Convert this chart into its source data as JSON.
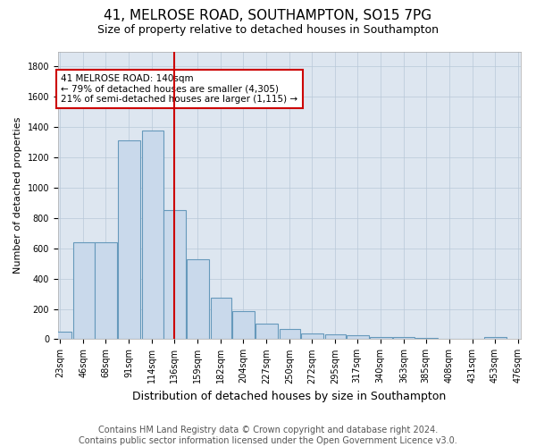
{
  "title": "41, MELROSE ROAD, SOUTHAMPTON, SO15 7PG",
  "subtitle": "Size of property relative to detached houses in Southampton",
  "xlabel": "Distribution of detached houses by size in Southampton",
  "ylabel": "Number of detached properties",
  "bar_color": "#c9d9eb",
  "bar_edge_color": "#6699bb",
  "vline_x": 136,
  "vline_color": "#cc0000",
  "annotation_text": "41 MELROSE ROAD: 140sqm\n← 79% of detached houses are smaller (4,305)\n21% of semi-detached houses are larger (1,115) →",
  "annotation_box_color": "#cc0000",
  "footer_text": "Contains HM Land Registry data © Crown copyright and database right 2024.\nContains public sector information licensed under the Open Government Licence v3.0.",
  "bins": [
    23,
    46,
    68,
    91,
    114,
    136,
    159,
    182,
    204,
    227,
    250,
    272,
    295,
    317,
    340,
    363,
    385,
    408,
    431,
    453,
    476
  ],
  "counts": [
    50,
    640,
    640,
    1310,
    1380,
    850,
    530,
    275,
    185,
    105,
    65,
    40,
    35,
    25,
    15,
    15,
    10,
    5,
    5,
    15
  ],
  "ylim": [
    0,
    1900
  ],
  "yticks": [
    0,
    200,
    400,
    600,
    800,
    1000,
    1200,
    1400,
    1600,
    1800
  ],
  "background_color": "#dde6f0",
  "title_fontsize": 11,
  "subtitle_fontsize": 9,
  "footer_fontsize": 7,
  "tick_fontsize": 7,
  "ylabel_fontsize": 8,
  "xlabel_fontsize": 9
}
